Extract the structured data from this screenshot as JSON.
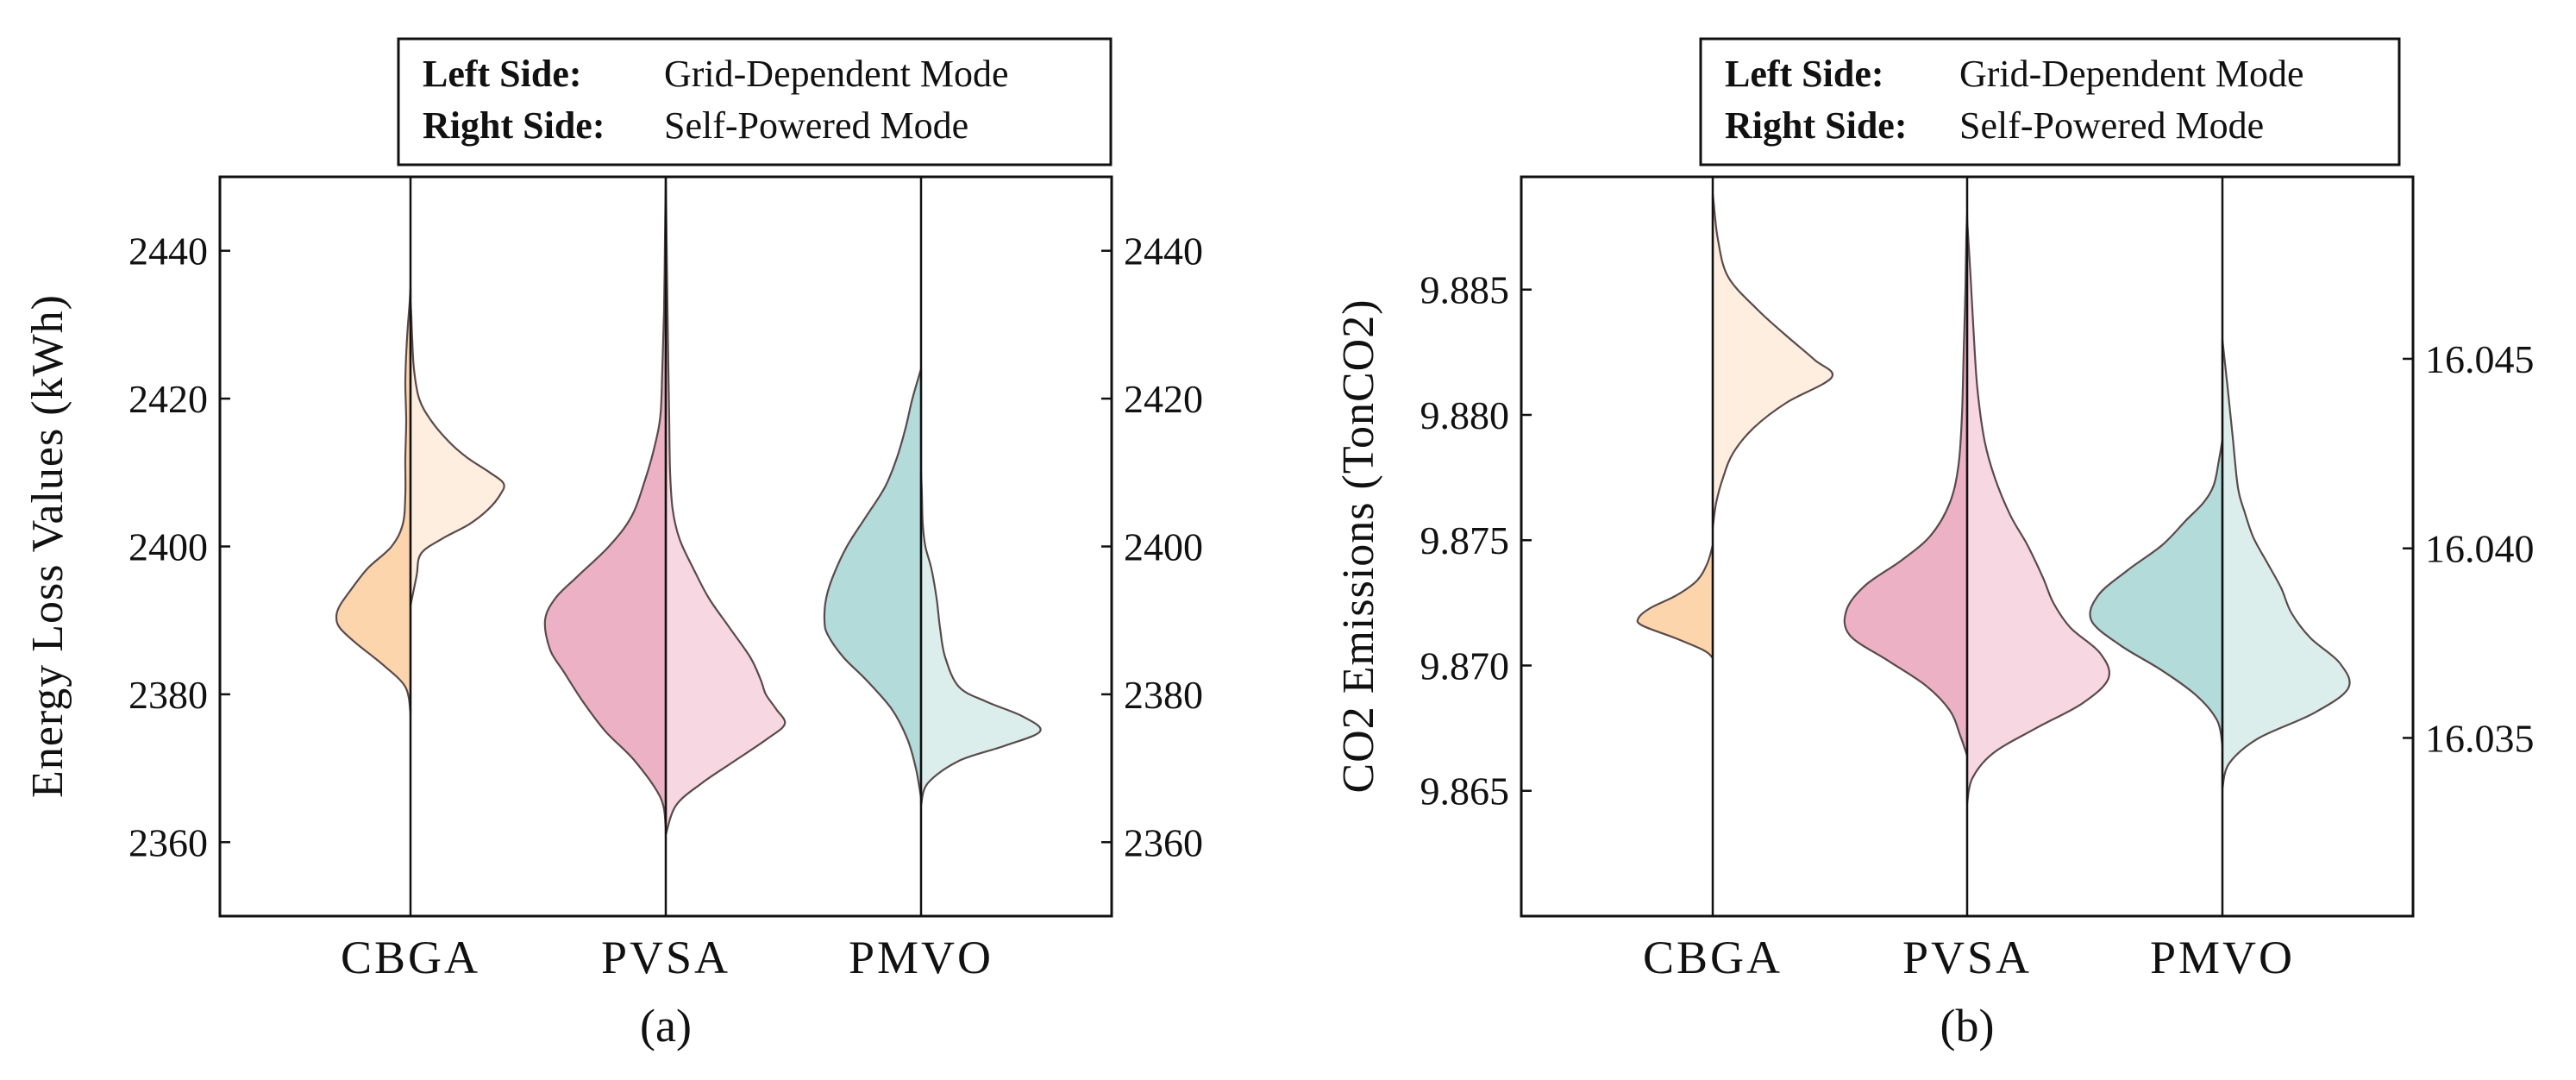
{
  "colors": {
    "CBGA_left": "#fdd5ad",
    "CBGA_right": "#fdeedf",
    "PVSA_left": "#ecb1c5",
    "PVSA_right": "#f6d7e2",
    "PMVO_left": "#b2dbda",
    "PMVO_right": "#dbeeec",
    "outline": "#5a4a4a",
    "axis": "#111111"
  },
  "chart_data": [
    {
      "type": "violin",
      "id": "a",
      "subcaption": "(a)",
      "ylabel": "Energy Loss Values (kWh)",
      "legend": {
        "placement": "top-center",
        "rows": [
          {
            "key": "Left Side:",
            "value": "Grid-Dependent Mode"
          },
          {
            "key": "Right Side:",
            "value": "Self-Powered Mode"
          }
        ]
      },
      "categories": [
        "CBGA",
        "PVSA",
        "PMVO"
      ],
      "ylim": [
        2350,
        2450
      ],
      "yticks": [
        2360,
        2380,
        2400,
        2420,
        2440
      ],
      "ytick_labels": [
        "2360",
        "2380",
        "2400",
        "2420",
        "2440"
      ],
      "right_ylim": [
        2350,
        2450
      ],
      "right_yticks": [
        2360,
        2380,
        2400,
        2420,
        2440
      ],
      "right_ytick_labels": [
        "2360",
        "2380",
        "2400",
        "2420",
        "2440"
      ],
      "violins": [
        {
          "category": "CBGA",
          "left": {
            "name": "Grid-Dependent Mode",
            "profile": [
              [
                2377.5,
                0
              ],
              [
                2381,
                6
              ],
              [
                2384,
                32
              ],
              [
                2387,
                64
              ],
              [
                2389,
                82
              ],
              [
                2390.5,
                86
              ],
              [
                2392,
                82
              ],
              [
                2394,
                70
              ],
              [
                2397,
                50
              ],
              [
                2400,
                22
              ],
              [
                2403,
                9
              ],
              [
                2407,
                6
              ],
              [
                2412,
                6
              ],
              [
                2417,
                5
              ],
              [
                2422,
                6
              ],
              [
                2426,
                5
              ],
              [
                2430,
                3
              ],
              [
                2433,
                1
              ],
              [
                2435,
                0
              ]
            ]
          },
          "right": {
            "name": "Self-Powered Mode",
            "profile": [
              [
                2392,
                0
              ],
              [
                2396,
                7
              ],
              [
                2399,
                12
              ],
              [
                2401,
                36
              ],
              [
                2403,
                68
              ],
              [
                2405,
                90
              ],
              [
                2407,
                104
              ],
              [
                2408.5,
                108
              ],
              [
                2410,
                92
              ],
              [
                2412,
                66
              ],
              [
                2414,
                46
              ],
              [
                2417,
                24
              ],
              [
                2420,
                10
              ],
              [
                2424,
                4
              ],
              [
                2428,
                2
              ],
              [
                2431,
                1
              ],
              [
                2433,
                0
              ]
            ]
          }
        },
        {
          "category": "PVSA",
          "left": {
            "name": "Grid-Dependent Mode",
            "profile": [
              [
                2362,
                0
              ],
              [
                2366,
                6
              ],
              [
                2371,
                36
              ],
              [
                2375,
                70
              ],
              [
                2379,
                96
              ],
              [
                2383,
                118
              ],
              [
                2386,
                134
              ],
              [
                2390,
                140
              ],
              [
                2393,
                128
              ],
              [
                2396,
                102
              ],
              [
                2400,
                66
              ],
              [
                2404,
                40
              ],
              [
                2409,
                24
              ],
              [
                2414,
                12
              ],
              [
                2418,
                6
              ],
              [
                2424,
                4
              ],
              [
                2432,
                2
              ],
              [
                2441,
                1
              ],
              [
                2450,
                0
              ]
            ]
          },
          "right": {
            "name": "Self-Powered Mode",
            "profile": [
              [
                2361,
                0
              ],
              [
                2365,
                12
              ],
              [
                2368,
                42
              ],
              [
                2371,
                80
              ],
              [
                2374,
                118
              ],
              [
                2376,
                138
              ],
              [
                2378,
                128
              ],
              [
                2380,
                116
              ],
              [
                2382,
                110
              ],
              [
                2385,
                98
              ],
              [
                2389,
                74
              ],
              [
                2393,
                50
              ],
              [
                2397,
                32
              ],
              [
                2401,
                16
              ],
              [
                2405,
                8
              ],
              [
                2410,
                5
              ],
              [
                2417,
                4
              ],
              [
                2424,
                3
              ],
              [
                2432,
                2
              ],
              [
                2441,
                1
              ],
              [
                2450,
                0
              ]
            ]
          }
        },
        {
          "category": "PMVO",
          "left": {
            "name": "Grid-Dependent Mode",
            "profile": [
              [
                2366,
                0
              ],
              [
                2370,
                6
              ],
              [
                2374,
                16
              ],
              [
                2378,
                34
              ],
              [
                2382,
                64
              ],
              [
                2385,
                90
              ],
              [
                2388,
                108
              ],
              [
                2390,
                112
              ],
              [
                2393,
                110
              ],
              [
                2396,
                102
              ],
              [
                2400,
                86
              ],
              [
                2404,
                64
              ],
              [
                2408,
                42
              ],
              [
                2412,
                28
              ],
              [
                2416,
                18
              ],
              [
                2420,
                10
              ],
              [
                2424,
                0
              ]
            ]
          },
          "right": {
            "name": "Self-Powered Mode",
            "profile": [
              [
                2365,
                0
              ],
              [
                2368,
                8
              ],
              [
                2371,
                44
              ],
              [
                2373,
                96
              ],
              [
                2375,
                138
              ],
              [
                2377,
                118
              ],
              [
                2379,
                76
              ],
              [
                2381,
                44
              ],
              [
                2385,
                28
              ],
              [
                2389,
                22
              ],
              [
                2393,
                18
              ],
              [
                2397,
                12
              ],
              [
                2400,
                5
              ],
              [
                2403,
                2
              ],
              [
                2407,
                1
              ],
              [
                2410,
                0
              ]
            ]
          }
        }
      ]
    },
    {
      "type": "violin",
      "id": "b",
      "subcaption": "(b)",
      "ylabel": "CO2 Emissions (TonCO2)",
      "legend": {
        "placement": "top-center",
        "rows": [
          {
            "key": "Left Side:",
            "value": "Grid-Dependent Mode"
          },
          {
            "key": "Right Side:",
            "value": "Self-Powered Mode"
          }
        ]
      },
      "categories": [
        "CBGA",
        "PVSA",
        "PMVO"
      ],
      "ylim": [
        9.86,
        9.8895
      ],
      "yticks": [
        9.865,
        9.87,
        9.875,
        9.88,
        9.885
      ],
      "ytick_labels": [
        "9.865",
        "9.870",
        "9.875",
        "9.880",
        "9.885"
      ],
      "right_ylim": [
        16.0303,
        16.0498
      ],
      "right_yticks": [
        16.035,
        16.04,
        16.045
      ],
      "right_ytick_labels": [
        "16.035",
        "16.040",
        "16.045"
      ],
      "violins": [
        {
          "category": "CBGA",
          "left": {
            "name": "Grid-Dependent Mode",
            "profile": [
              [
                9.8703,
                0
              ],
              [
                9.8706,
                10
              ],
              [
                9.8711,
                44
              ],
              [
                9.8716,
                82
              ],
              [
                9.8719,
                86
              ],
              [
                9.8723,
                72
              ],
              [
                9.8728,
                42
              ],
              [
                9.8734,
                18
              ],
              [
                9.8741,
                6
              ],
              [
                9.8748,
                0
              ]
            ]
          },
          "right": {
            "name": "Self-Powered Mode",
            "profile": [
              [
                9.8755,
                0
              ],
              [
                9.8765,
                4
              ],
              [
                9.8775,
                12
              ],
              [
                9.8785,
                24
              ],
              [
                9.8795,
                48
              ],
              [
                9.8805,
                86
              ],
              [
                9.8815,
                138
              ],
              [
                9.8822,
                118
              ],
              [
                9.8832,
                84
              ],
              [
                9.8842,
                52
              ],
              [
                9.8855,
                18
              ],
              [
                9.887,
                6
              ],
              [
                9.8885,
                1
              ],
              [
                9.8888,
                0
              ]
            ]
          }
        },
        {
          "category": "PVSA",
          "left": {
            "name": "Grid-Dependent Mode",
            "profile": [
              [
                9.8664,
                0
              ],
              [
                9.8672,
                8
              ],
              [
                9.8682,
                20
              ],
              [
                9.8692,
                48
              ],
              [
                9.8702,
                92
              ],
              [
                9.8712,
                136
              ],
              [
                9.8722,
                140
              ],
              [
                9.8732,
                118
              ],
              [
                9.8742,
                76
              ],
              [
                9.8752,
                42
              ],
              [
                9.8765,
                20
              ],
              [
                9.878,
                10
              ],
              [
                9.88,
                6
              ],
              [
                9.8825,
                4
              ],
              [
                9.885,
                2
              ],
              [
                9.887,
                1
              ],
              [
                9.888,
                0
              ]
            ]
          },
          "right": {
            "name": "Self-Powered Mode",
            "profile": [
              [
                9.8645,
                0
              ],
              [
                9.8655,
                6
              ],
              [
                9.8665,
                30
              ],
              [
                9.8675,
                80
              ],
              [
                9.8685,
                134
              ],
              [
                9.8695,
                164
              ],
              [
                9.8705,
                154
              ],
              [
                9.8715,
                120
              ],
              [
                9.8725,
                100
              ],
              [
                9.8735,
                88
              ],
              [
                9.8748,
                70
              ],
              [
                9.876,
                50
              ],
              [
                9.8775,
                32
              ],
              [
                9.879,
                20
              ],
              [
                9.881,
                12
              ],
              [
                9.883,
                8
              ],
              [
                9.8855,
                4
              ],
              [
                9.8878,
                0
              ]
            ]
          }
        },
        {
          "category": "PMVO",
          "left": {
            "name": "Grid-Dependent Mode",
            "profile": [
              [
                9.8668,
                0
              ],
              [
                9.8678,
                6
              ],
              [
                9.8688,
                30
              ],
              [
                9.8698,
                70
              ],
              [
                9.8708,
                118
              ],
              [
                9.8718,
                152
              ],
              [
                9.8728,
                144
              ],
              [
                9.8738,
                110
              ],
              [
                9.8748,
                70
              ],
              [
                9.8758,
                42
              ],
              [
                9.8765,
                22
              ],
              [
                9.8772,
                10
              ],
              [
                9.8782,
                4
              ],
              [
                9.879,
                0
              ]
            ]
          },
          "right": {
            "name": "Self-Powered Mode",
            "profile": [
              [
                9.8651,
                0
              ],
              [
                9.8661,
                8
              ],
              [
                9.8671,
                42
              ],
              [
                9.8681,
                106
              ],
              [
                9.8691,
                146
              ],
              [
                9.8701,
                136
              ],
              [
                9.8711,
                102
              ],
              [
                9.8721,
                80
              ],
              [
                9.8731,
                68
              ],
              [
                9.8741,
                52
              ],
              [
                9.8751,
                36
              ],
              [
                9.8761,
                26
              ],
              [
                9.8771,
                18
              ],
              [
                9.8791,
                12
              ],
              [
                9.8811,
                6
              ],
              [
                9.883,
                0
              ]
            ]
          }
        }
      ]
    }
  ]
}
